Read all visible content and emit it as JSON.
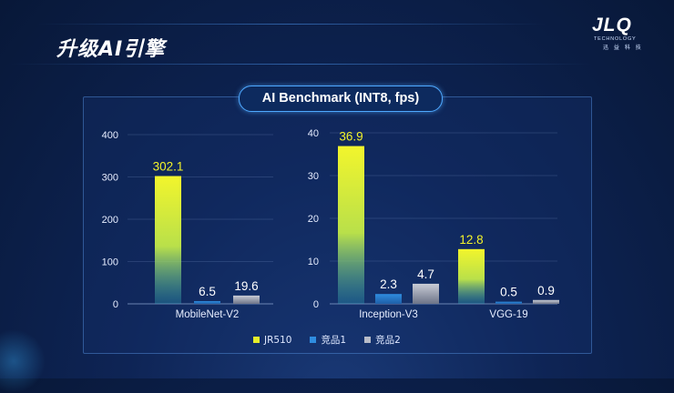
{
  "slide": {
    "title": "升级AI引擎"
  },
  "logo": {
    "main": "JLQ",
    "sub": "TECHNOLOGY",
    "cn": "迅 益 科 技"
  },
  "chart_title": "AI Benchmark (INT8, fps)",
  "legend": [
    {
      "label": "JR510",
      "color": "#e6ee2a"
    },
    {
      "label": "竞品1",
      "color": "#2f8de0"
    },
    {
      "label": "竞品2",
      "color": "#b8bcc8"
    }
  ],
  "chart_data": [
    {
      "type": "bar",
      "title": "AI Benchmark (INT8, fps)",
      "categories": [
        "MobileNet-V2"
      ],
      "ylim": [
        0,
        400
      ],
      "yticks": [
        0,
        100,
        200,
        300,
        400
      ],
      "series": [
        {
          "name": "JR510",
          "values": [
            302.1
          ]
        },
        {
          "name": "竞品1",
          "values": [
            6.5
          ]
        },
        {
          "name": "竞品2",
          "values": [
            19.6
          ]
        }
      ]
    },
    {
      "type": "bar",
      "title": "AI Benchmark (INT8, fps)",
      "categories": [
        "Inception-V3",
        "VGG-19"
      ],
      "ylim": [
        0,
        40
      ],
      "yticks": [
        0,
        10,
        20,
        30,
        40
      ],
      "series": [
        {
          "name": "JR510",
          "values": [
            36.9,
            12.8
          ]
        },
        {
          "name": "竞品1",
          "values": [
            2.3,
            0.5
          ]
        },
        {
          "name": "竞品2",
          "values": [
            4.7,
            0.9
          ]
        }
      ]
    }
  ]
}
